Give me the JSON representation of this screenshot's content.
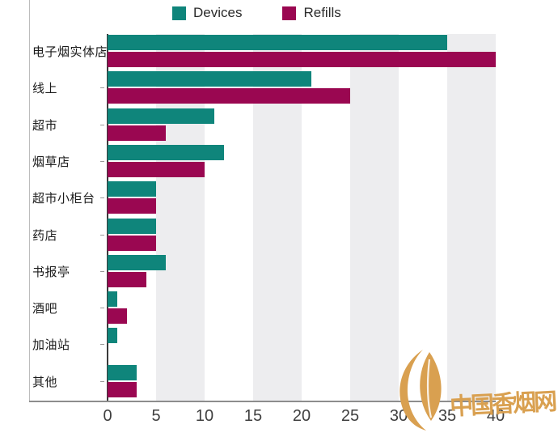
{
  "chart_data": {
    "type": "bar",
    "orientation": "horizontal",
    "title": "",
    "categories": [
      "电子烟实体店",
      "线上",
      "超市",
      "烟草店",
      "超市小柜台",
      "药店",
      "书报亭",
      "酒吧",
      "加油站",
      "其他"
    ],
    "series": [
      {
        "name": "Devices",
        "color": "#0F857B",
        "values": [
          35,
          21,
          11,
          12,
          5,
          5,
          6,
          1,
          1,
          3
        ]
      },
      {
        "name": "Refills",
        "color": "#9A0751",
        "values": [
          40,
          25,
          6,
          10,
          5,
          5,
          4,
          2,
          0,
          3
        ]
      }
    ],
    "xlim": [
      0,
      40
    ],
    "x_ticks": [
      "0",
      "5",
      "10",
      "15",
      "20",
      "25",
      "30",
      "35",
      "40"
    ],
    "grid_bands": [
      [
        5,
        10
      ],
      [
        15,
        20
      ],
      [
        25,
        30
      ],
      [
        35,
        40
      ]
    ],
    "band_color": "#EDEDEF",
    "legend_position": "top",
    "grid": "vertical-bands"
  },
  "watermark": {
    "text": "中国香烟网",
    "color": "#D9A050"
  },
  "colors": {
    "axis_line": "#8D8D8D",
    "category_axis_line": "#3A3A3A",
    "side_border_line": "#BCBCBC",
    "tick_text": "#3F3F3F",
    "label_text": "#1C1C1C",
    "legend_text": "#2B2B2B",
    "background": "#FFFFFF"
  }
}
